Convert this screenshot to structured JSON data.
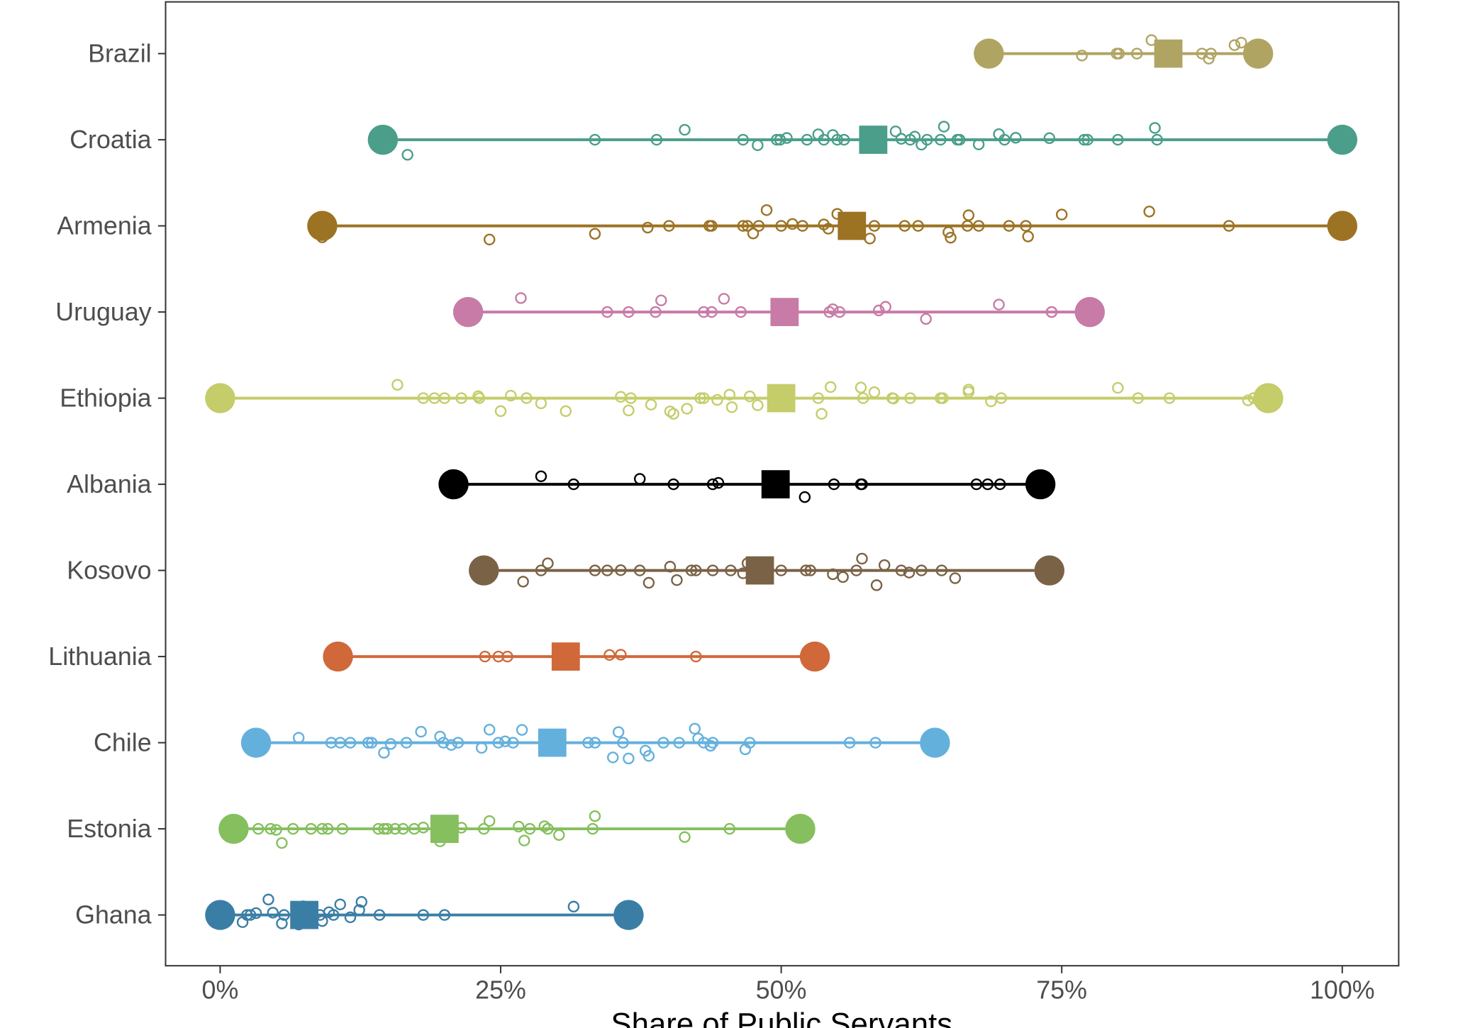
{
  "chart_data": {
    "type": "scatter",
    "subtype": "dumbbell-with-jitter",
    "title": "",
    "xlabel": "Share of Public Servants",
    "ylabel": "",
    "xlim": [
      0,
      100
    ],
    "x_ticks": [
      0,
      25,
      50,
      75,
      100
    ],
    "x_tick_labels": [
      "0%",
      "25%",
      "50%",
      "75%",
      "100%"
    ],
    "grid": false,
    "legend": "none",
    "series": [
      {
        "name": "Brazil",
        "color": "#b0a463",
        "min": 68.5,
        "max": 92.5,
        "mean": 84.5,
        "points": [
          76.8,
          79.9,
          80.1,
          81.7,
          83.0,
          84.0,
          84.7,
          87.5,
          88.1,
          88.3,
          90.4,
          91.0,
          92.5
        ]
      },
      {
        "name": "Croatia",
        "color": "#4a9e8a",
        "min": 14.5,
        "max": 100,
        "mean": 58.2,
        "points": [
          14.3,
          15.0,
          16.7,
          33.4,
          38.9,
          41.4,
          46.6,
          47.9,
          49.6,
          49.9,
          50.5,
          52.3,
          53.3,
          53.8,
          54.6,
          55.0,
          55.6,
          60.2,
          60.7,
          61.5,
          61.9,
          62.5,
          63.0,
          64.2,
          64.5,
          65.7,
          65.9,
          67.6,
          69.4,
          69.9,
          70.9,
          73.9,
          77.0,
          77.3,
          80.0,
          83.3,
          83.5
        ]
      },
      {
        "name": "Armenia",
        "color": "#9c7223",
        "min": 9.1,
        "max": 100,
        "mean": 56.3,
        "points": [
          9.1,
          24.0,
          33.4,
          38.1,
          40.0,
          43.6,
          43.8,
          46.6,
          47.0,
          47.5,
          48.0,
          48.7,
          50.0,
          51.0,
          51.9,
          53.8,
          54.2,
          55.0,
          57.9,
          58.3,
          61.0,
          62.2,
          64.9,
          65.1,
          66.6,
          66.7,
          67.6,
          70.3,
          71.8,
          72.0,
          75.0,
          82.8,
          89.9
        ]
      },
      {
        "name": "Uruguay",
        "color": "#c77ba6",
        "min": 22.1,
        "max": 77.5,
        "mean": 50.3,
        "points": [
          26.8,
          34.5,
          36.4,
          38.8,
          39.3,
          43.1,
          43.8,
          44.9,
          46.4,
          54.3,
          54.6,
          55.2,
          58.7,
          59.3,
          62.9,
          69.4,
          74.1,
          74.1
        ]
      },
      {
        "name": "Ethiopia",
        "color": "#c5cc6a",
        "min": 0,
        "max": 93.4,
        "mean": 50.0,
        "points": [
          15.8,
          18.1,
          19.1,
          20.0,
          21.5,
          23.0,
          23.1,
          25.0,
          25.9,
          27.3,
          28.6,
          30.8,
          35.7,
          36.4,
          36.6,
          38.4,
          40.1,
          40.4,
          41.6,
          42.8,
          43.1,
          44.3,
          45.4,
          45.6,
          47.2,
          47.9,
          50.0,
          53.3,
          53.6,
          54.4,
          57.1,
          57.3,
          58.3,
          59.9,
          60.0,
          61.5,
          64.2,
          64.4,
          66.7,
          66.7,
          68.7,
          69.6,
          80.0,
          81.8,
          84.6,
          91.6,
          92.1
        ]
      },
      {
        "name": "Albania",
        "color": "#000000",
        "min": 20.8,
        "max": 73.1,
        "mean": 49.5,
        "points": [
          20.8,
          28.6,
          31.5,
          37.4,
          40.4,
          43.9,
          44.4,
          52.1,
          54.7,
          57.1,
          57.2,
          67.4,
          68.4,
          69.5
        ]
      },
      {
        "name": "Kosovo",
        "color": "#7a6246",
        "min": 23.5,
        "max": 73.9,
        "mean": 48.1,
        "points": [
          27.0,
          28.6,
          29.2,
          33.4,
          34.5,
          35.7,
          37.4,
          38.2,
          40.1,
          40.7,
          42.0,
          42.4,
          43.9,
          45.5,
          46.6,
          47.0,
          50.0,
          52.2,
          52.6,
          54.6,
          55.5,
          56.7,
          57.2,
          58.5,
          59.2,
          60.7,
          61.4,
          62.5,
          64.3,
          65.5,
          73.6
        ]
      },
      {
        "name": "Lithuania",
        "color": "#d0683a",
        "min": 10.5,
        "max": 53.0,
        "mean": 30.8,
        "points": [
          10.5,
          23.6,
          24.8,
          25.6,
          30.3,
          34.7,
          35.7,
          42.4
        ]
      },
      {
        "name": "Chile",
        "color": "#64b0dd",
        "min": 3.2,
        "max": 63.7,
        "mean": 29.6,
        "points": [
          7.0,
          9.9,
          10.7,
          11.6,
          13.2,
          13.5,
          14.6,
          15.2,
          16.6,
          17.9,
          19.6,
          19.9,
          20.6,
          21.2,
          23.3,
          24.0,
          24.8,
          25.4,
          26.1,
          26.9,
          29.4,
          32.8,
          33.4,
          35.0,
          35.5,
          35.9,
          36.4,
          37.9,
          38.2,
          39.5,
          40.9,
          42.3,
          42.6,
          43.1,
          43.7,
          43.9,
          46.8,
          47.2,
          56.1,
          58.4,
          63.5
        ]
      },
      {
        "name": "Estonia",
        "color": "#85bf5e",
        "min": 1.2,
        "max": 51.7,
        "mean": 20.0,
        "points": [
          3.4,
          4.5,
          5.0,
          5.5,
          6.5,
          8.1,
          9.1,
          9.6,
          10.9,
          14.1,
          14.6,
          14.9,
          15.6,
          16.3,
          17.3,
          18.1,
          19.6,
          20.5,
          21.5,
          23.5,
          24.0,
          26.6,
          27.1,
          27.6,
          28.9,
          29.2,
          30.2,
          33.2,
          33.4,
          41.4,
          45.4,
          51.7
        ]
      },
      {
        "name": "Ghana",
        "color": "#3a7ea5",
        "min": 0,
        "max": 36.4,
        "mean": 7.5,
        "points": [
          0,
          0.2,
          2.0,
          2.4,
          2.7,
          3.2,
          4.3,
          4.7,
          5.5,
          5.7,
          7.0,
          7.4,
          8.0,
          8.9,
          9.1,
          9.7,
          10.1,
          10.7,
          11.6,
          12.4,
          12.6,
          14.2,
          18.1,
          20.0,
          31.5
        ]
      }
    ]
  }
}
